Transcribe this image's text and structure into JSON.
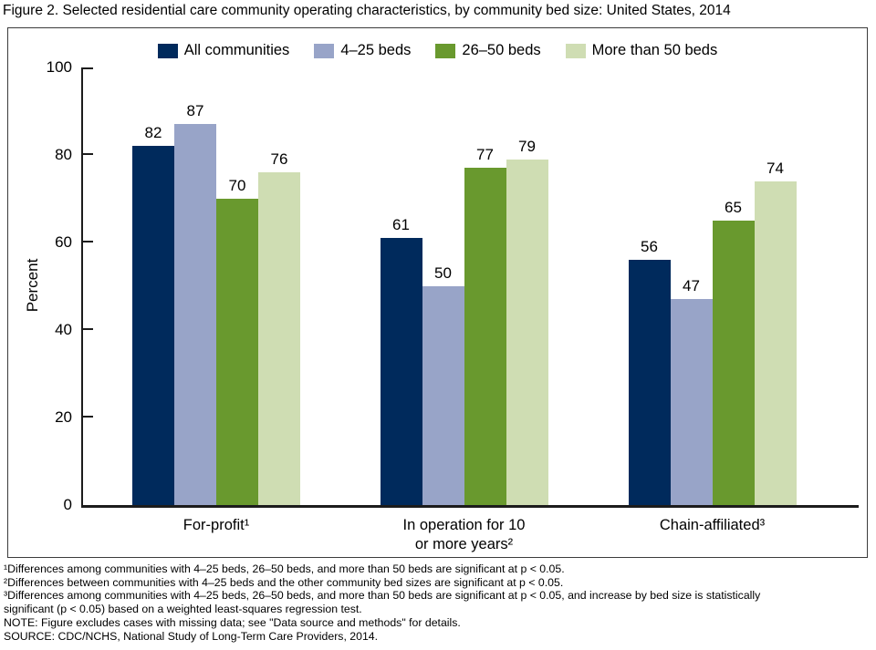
{
  "title": "Figure 2. Selected residential care community operating characteristics, by community bed size: United States, 2014",
  "colors": {
    "all_communities": "#002a5c",
    "beds_4_25": "#98a4c8",
    "beds_26_50": "#69992e",
    "beds_over_50": "#cfddb3",
    "axis": "#1c1c1c",
    "frame_border": "#3c3c3c"
  },
  "chart_data": {
    "type": "bar",
    "title": "Figure 2. Selected residential care community operating characteristics, by community bed size: United States, 2014",
    "categories": [
      "For-profit¹",
      "In operation for 10\nor more years²",
      "Chain-affiliated³"
    ],
    "series": [
      {
        "name": "All communities",
        "color_key": "all_communities",
        "values": [
          82,
          61,
          56
        ]
      },
      {
        "name": "4–25 beds",
        "color_key": "beds_4_25",
        "values": [
          87,
          50,
          47
        ]
      },
      {
        "name": "26–50 beds",
        "color_key": "beds_26_50",
        "values": [
          70,
          77,
          65
        ]
      },
      {
        "name": "More than 50 beds",
        "color_key": "beds_over_50",
        "values": [
          76,
          79,
          74
        ]
      }
    ],
    "xlabel": "",
    "ylabel": "Percent",
    "ylim": [
      0,
      100
    ],
    "yticks": [
      0,
      20,
      40,
      60,
      80,
      100
    ],
    "grid": false,
    "legend_position": "top",
    "value_labels": true
  },
  "footnotes": {
    "lines": [
      "¹Differences among communities with 4–25 beds, 26–50 beds, and more than 50 beds are significant at p < 0.05.",
      "²Differences between communities with 4–25 beds and the other community bed sizes are significant at p < 0.05.",
      "³Differences among communities with 4–25 beds, 26–50 beds, and more than 50 beds are significant at p < 0.05, and increase by bed size is statistically",
      "significant (p < 0.05) based on a weighted least-squares regression test.",
      "NOTE: Figure excludes cases with missing data; see \"Data source and methods\" for details.",
      "SOURCE: CDC/NCHS, National Study of Long-Term Care Providers, 2014."
    ]
  }
}
